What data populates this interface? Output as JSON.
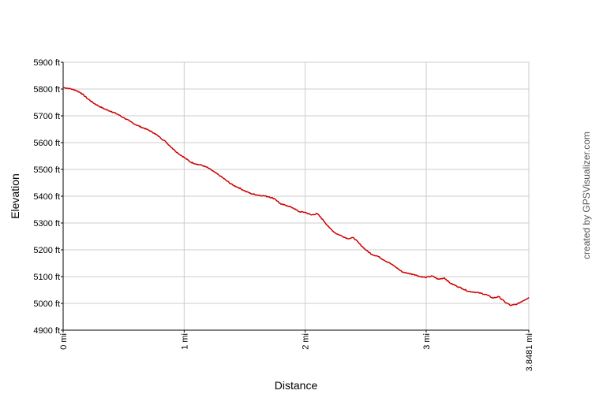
{
  "chart_data": {
    "type": "line",
    "xlabel": "Distance",
    "ylabel": "Elevation",
    "xlim": [
      0,
      3.8481
    ],
    "ylim": [
      4900,
      5900
    ],
    "x_ticks": [
      {
        "value": 0,
        "label": "0 mi"
      },
      {
        "value": 1,
        "label": "1 mi"
      },
      {
        "value": 2,
        "label": "2 mi"
      },
      {
        "value": 3,
        "label": "3 mi"
      },
      {
        "value": 3.8481,
        "label": "3.8481 mi"
      }
    ],
    "y_ticks": [
      {
        "value": 4900,
        "label": "4900 ft"
      },
      {
        "value": 5000,
        "label": "5000 ft"
      },
      {
        "value": 5100,
        "label": "5100 ft"
      },
      {
        "value": 5200,
        "label": "5200 ft"
      },
      {
        "value": 5300,
        "label": "5300 ft"
      },
      {
        "value": 5400,
        "label": "5400 ft"
      },
      {
        "value": 5500,
        "label": "5500 ft"
      },
      {
        "value": 5600,
        "label": "5600 ft"
      },
      {
        "value": 5700,
        "label": "5700 ft"
      },
      {
        "value": 5800,
        "label": "5800 ft"
      },
      {
        "value": 5900,
        "label": "5900 ft"
      }
    ],
    "grid": true,
    "line_color": "#cc0000",
    "series": [
      {
        "points": [
          [
            0.0,
            5806
          ],
          [
            0.05,
            5802
          ],
          [
            0.1,
            5796
          ],
          [
            0.15,
            5785
          ],
          [
            0.2,
            5765
          ],
          [
            0.25,
            5748
          ],
          [
            0.3,
            5735
          ],
          [
            0.35,
            5724
          ],
          [
            0.4,
            5716
          ],
          [
            0.45,
            5706
          ],
          [
            0.5,
            5693
          ],
          [
            0.55,
            5680
          ],
          [
            0.6,
            5667
          ],
          [
            0.65,
            5657
          ],
          [
            0.7,
            5648
          ],
          [
            0.75,
            5636
          ],
          [
            0.8,
            5620
          ],
          [
            0.85,
            5602
          ],
          [
            0.9,
            5580
          ],
          [
            0.95,
            5560
          ],
          [
            1.0,
            5545
          ],
          [
            1.05,
            5528
          ],
          [
            1.1,
            5520
          ],
          [
            1.15,
            5515
          ],
          [
            1.2,
            5505
          ],
          [
            1.25,
            5490
          ],
          [
            1.3,
            5475
          ],
          [
            1.35,
            5458
          ],
          [
            1.4,
            5442
          ],
          [
            1.45,
            5432
          ],
          [
            1.5,
            5420
          ],
          [
            1.55,
            5410
          ],
          [
            1.6,
            5405
          ],
          [
            1.65,
            5402
          ],
          [
            1.7,
            5398
          ],
          [
            1.75,
            5390
          ],
          [
            1.8,
            5370
          ],
          [
            1.85,
            5365
          ],
          [
            1.9,
            5356
          ],
          [
            1.95,
            5342
          ],
          [
            2.0,
            5340
          ],
          [
            2.05,
            5330
          ],
          [
            2.1,
            5335
          ],
          [
            2.15,
            5310
          ],
          [
            2.2,
            5282
          ],
          [
            2.25,
            5262
          ],
          [
            2.3,
            5252
          ],
          [
            2.35,
            5242
          ],
          [
            2.4,
            5245
          ],
          [
            2.45,
            5222
          ],
          [
            2.5,
            5200
          ],
          [
            2.55,
            5183
          ],
          [
            2.6,
            5176
          ],
          [
            2.65,
            5162
          ],
          [
            2.7,
            5150
          ],
          [
            2.75,
            5135
          ],
          [
            2.8,
            5118
          ],
          [
            2.85,
            5112
          ],
          [
            2.9,
            5108
          ],
          [
            2.95,
            5100
          ],
          [
            3.0,
            5097
          ],
          [
            3.05,
            5102
          ],
          [
            3.1,
            5090
          ],
          [
            3.15,
            5095
          ],
          [
            3.2,
            5075
          ],
          [
            3.25,
            5065
          ],
          [
            3.3,
            5055
          ],
          [
            3.35,
            5045
          ],
          [
            3.4,
            5042
          ],
          [
            3.45,
            5038
          ],
          [
            3.5,
            5032
          ],
          [
            3.55,
            5020
          ],
          [
            3.6,
            5025
          ],
          [
            3.65,
            5005
          ],
          [
            3.7,
            4992
          ],
          [
            3.75,
            4997
          ],
          [
            3.8,
            5010
          ],
          [
            3.8481,
            5022
          ]
        ]
      }
    ]
  },
  "credit": "created by GPSVisualizer.com",
  "colors": {
    "line": "#cc0000",
    "grid": "#cccccc",
    "axis": "#000000",
    "credit": "#555555"
  }
}
